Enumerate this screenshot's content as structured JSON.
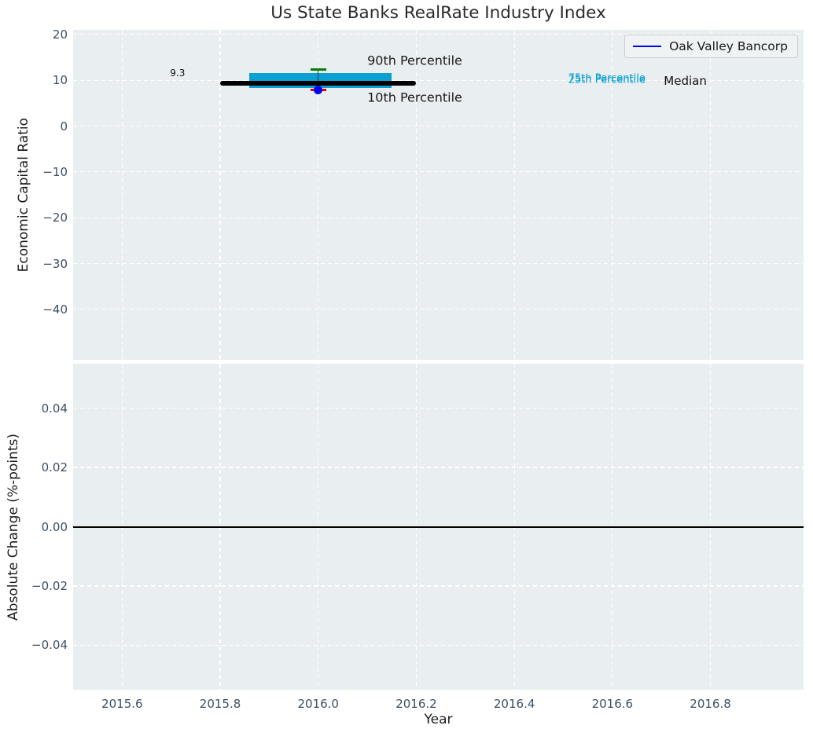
{
  "colors": {
    "figure_bg": "#ffffff",
    "axes_bg": "#e9eef0",
    "grid": "#ffffff",
    "tick_label": "#3e4f63",
    "axis_label": "#1c1c1c",
    "title": "#2b2b2b",
    "iqr_bar": "#0aa0d1",
    "median_line": "#000000",
    "p90_cap": "#008000",
    "p10_cap": "#ee0000",
    "whisker": "#3a3a3a",
    "company_marker": "#0000ee",
    "zero_line": "#000000",
    "legend_line": "#0000e0"
  },
  "chart_data": [
    {
      "type": "box",
      "panel": "economic-capital-ratio",
      "title": "Us State Banks RealRate Industry Index",
      "ylabel": "Economic Capital Ratio",
      "xlim": [
        2015.5,
        2016.99
      ],
      "ylim": [
        -51,
        21
      ],
      "grid": "white-dashed",
      "legend": {
        "position": "upper right",
        "entries": [
          {
            "label": "Oak Valley Bancorp",
            "color": "#0000e0"
          }
        ]
      },
      "xticks": {
        "values": [
          2015.6,
          2015.8,
          2016.0,
          2016.2,
          2016.4,
          2016.6,
          2016.8
        ],
        "labels": [
          "2015.6",
          "2015.8",
          "2016.0",
          "2016.2",
          "2016.4",
          "2016.6",
          "2016.8"
        ],
        "show_labels": false
      },
      "yticks": {
        "values": [
          20,
          10,
          0,
          -10,
          -20,
          -30,
          -40
        ],
        "labels": [
          "20",
          "10",
          "0",
          "−10",
          "−20",
          "−30",
          "−40"
        ]
      },
      "box": {
        "x": 2016.0,
        "median": 9.3,
        "median_label": "9.3",
        "p25": 8.3,
        "p75": 11.6,
        "p10": 7.9,
        "p90": 12.4,
        "median_span_years": [
          2015.8,
          2016.2
        ],
        "iqr_span_years": [
          2015.86,
          2016.15
        ],
        "cap_half_width_years": 0.016
      },
      "company_point": {
        "label": "Oak Valley Bancorp",
        "x": 2016.0,
        "y": 7.9
      },
      "annotations": [
        {
          "text": "90th Percentile",
          "x": 2016.1,
          "y": 14.3,
          "ha": "left",
          "color": "#1a1a1a",
          "size": 16
        },
        {
          "text": "10th Percentile",
          "x": 2016.1,
          "y": 6.2,
          "ha": "left",
          "color": "#1a1a1a",
          "size": 16
        },
        {
          "text": "75th Percentile",
          "x": 2016.51,
          "y": 10.45,
          "ha": "left",
          "color": "#0aa0d1",
          "size": 13
        },
        {
          "text": "25th Percentile",
          "x": 2016.51,
          "y": 10.05,
          "ha": "left",
          "color": "#0aa0d1",
          "size": 13
        },
        {
          "text": "Median",
          "x": 2016.705,
          "y": 9.85,
          "ha": "left",
          "color": "#111111",
          "size": 15
        },
        {
          "text": "9.3",
          "x": 2015.713,
          "y": 11.6,
          "ha": "center",
          "color": "#111111",
          "size": 12
        }
      ]
    },
    {
      "type": "line",
      "panel": "absolute-change",
      "ylabel": "Absolute Change (%-points)",
      "xlabel": "Year",
      "xlim": [
        2015.5,
        2016.99
      ],
      "ylim": [
        -0.055,
        0.055
      ],
      "grid": "white-dashed",
      "xticks": {
        "values": [
          2015.6,
          2015.8,
          2016.0,
          2016.2,
          2016.4,
          2016.6,
          2016.8
        ],
        "labels": [
          "2015.6",
          "2015.8",
          "2016.0",
          "2016.2",
          "2016.4",
          "2016.6",
          "2016.8"
        ],
        "show_labels": true
      },
      "yticks": {
        "values": [
          0.04,
          0.02,
          0.0,
          -0.02,
          -0.04
        ],
        "labels": [
          "0.04",
          "0.02",
          "0.00",
          "−0.02",
          "−0.04"
        ]
      },
      "zero_line": 0.0
    }
  ]
}
